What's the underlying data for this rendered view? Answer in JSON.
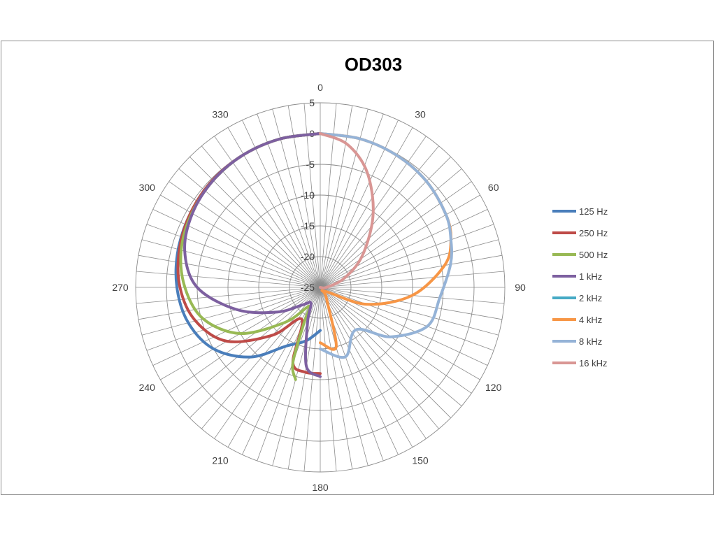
{
  "chart_data": {
    "type": "polar-line",
    "title": "OD303",
    "angle_ticks": [
      "0",
      "30",
      "60",
      "90",
      "120",
      "150",
      "180",
      "210",
      "240",
      "270",
      "300",
      "330"
    ],
    "radial_ticks": [
      "5",
      "0",
      "-5",
      "-10",
      "-15",
      "-20",
      "-25"
    ],
    "radial_range": [
      -25,
      5
    ],
    "grid": true,
    "legend_position": "right",
    "series": [
      {
        "name": "125 Hz",
        "color": "#4a7ebb",
        "points": [
          [
            -180,
            -18
          ],
          [
            -165,
            -16
          ],
          [
            -150,
            -14
          ],
          [
            -135,
            -9
          ],
          [
            -120,
            -5
          ],
          [
            -105,
            -2.8
          ],
          [
            -90,
            -1.7
          ],
          [
            -75,
            -1.1
          ],
          [
            -60,
            -0.7
          ],
          [
            -45,
            -0.3
          ],
          [
            -30,
            -0.1
          ],
          [
            -15,
            0
          ],
          [
            0,
            0
          ]
        ]
      },
      {
        "name": "250 Hz",
        "color": "#be4b48",
        "points": [
          [
            -180,
            -11
          ],
          [
            -170,
            -11
          ],
          [
            -160,
            -12
          ],
          [
            -150,
            -19
          ],
          [
            -135,
            -14
          ],
          [
            -120,
            -7.5
          ],
          [
            -105,
            -4
          ],
          [
            -90,
            -2.2
          ],
          [
            -75,
            -1.3
          ],
          [
            -60,
            -0.7
          ],
          [
            -45,
            -0.3
          ],
          [
            -30,
            -0.1
          ],
          [
            -15,
            0
          ],
          [
            0,
            0
          ]
        ]
      },
      {
        "name": "500 Hz",
        "color": "#98b954",
        "points": [
          [
            -165,
            -9.5
          ],
          [
            -160,
            -12
          ],
          [
            -155,
            -19
          ],
          [
            -150,
            -21.5
          ],
          [
            -135,
            -17
          ],
          [
            -120,
            -10
          ],
          [
            -105,
            -5.3
          ],
          [
            -90,
            -3
          ],
          [
            -75,
            -1.6
          ],
          [
            -60,
            -0.9
          ],
          [
            -45,
            -0.4
          ],
          [
            -30,
            -0.1
          ],
          [
            -15,
            0
          ],
          [
            0,
            0
          ]
        ]
      },
      {
        "name": "1 kHz",
        "color": "#7d60a0",
        "points": [
          [
            -180,
            -10.5
          ],
          [
            -170,
            -12
          ],
          [
            -160,
            -19
          ],
          [
            -150,
            -22
          ],
          [
            -135,
            -21
          ],
          [
            -120,
            -17
          ],
          [
            -105,
            -11
          ],
          [
            -90,
            -5
          ],
          [
            -75,
            -2.2
          ],
          [
            -60,
            -1
          ],
          [
            -45,
            -0.4
          ],
          [
            -30,
            -0.1
          ],
          [
            -15,
            0
          ],
          [
            0,
            0
          ]
        ]
      },
      {
        "name": "2 kHz",
        "color": "#46aac5",
        "points": []
      },
      {
        "name": "4 kHz",
        "color": "#f79646",
        "points": [
          [
            180,
            -16
          ],
          [
            165,
            -15
          ],
          [
            150,
            -23
          ],
          [
            130,
            -24
          ],
          [
            110,
            -17
          ],
          [
            95,
            -10
          ],
          [
            80,
            -4.5
          ],
          [
            70,
            -2.4
          ],
          [
            60,
            -1.4
          ],
          [
            45,
            -0.6
          ],
          [
            30,
            -0.2
          ],
          [
            15,
            0
          ],
          [
            0,
            0
          ]
        ]
      },
      {
        "name": "8 kHz",
        "color": "#95b3d7",
        "points": [
          [
            180,
            -15
          ],
          [
            160,
            -13
          ],
          [
            140,
            -16
          ],
          [
            125,
            -11
          ],
          [
            110,
            -6.5
          ],
          [
            95,
            -5.5
          ],
          [
            80,
            -3.5
          ],
          [
            70,
            -2.4
          ],
          [
            60,
            -1.4
          ],
          [
            45,
            -0.6
          ],
          [
            30,
            -0.2
          ],
          [
            15,
            0
          ],
          [
            0,
            0
          ]
        ]
      },
      {
        "name": "16 kHz",
        "color": "#d99694",
        "points": [
          [
            120,
            -25
          ],
          [
            90,
            -24
          ],
          [
            70,
            -21
          ],
          [
            55,
            -17
          ],
          [
            40,
            -12
          ],
          [
            30,
            -8
          ],
          [
            20,
            -4
          ],
          [
            10,
            -1.2
          ],
          [
            0,
            0
          ]
        ]
      }
    ]
  }
}
